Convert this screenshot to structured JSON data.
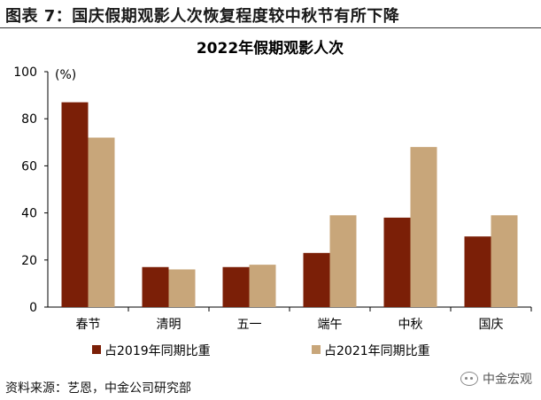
{
  "header": "图表 7：国庆假期观影人次恢复程度较中秋节有所下降",
  "source": "资料来源：艺恩，中金公司研究部",
  "watermark": "中金宏观",
  "chart_data": {
    "type": "bar",
    "title": "2022年假期观影人次",
    "ylabel": "(%)",
    "xlabel": "",
    "ylim": [
      0,
      100
    ],
    "yticks": [
      0,
      20,
      40,
      60,
      80,
      100
    ],
    "categories": [
      "春节",
      "清明",
      "五一",
      "端午",
      "中秋",
      "国庆"
    ],
    "series": [
      {
        "name": "占2019年同期比重",
        "color": "#7b1f07",
        "values": [
          87,
          17,
          17,
          23,
          38,
          30
        ]
      },
      {
        "name": "占2021年同期比重",
        "color": "#c8a67a",
        "values": [
          72,
          16,
          18,
          39,
          68,
          39
        ]
      }
    ],
    "legend_position": "bottom",
    "grid": false
  }
}
